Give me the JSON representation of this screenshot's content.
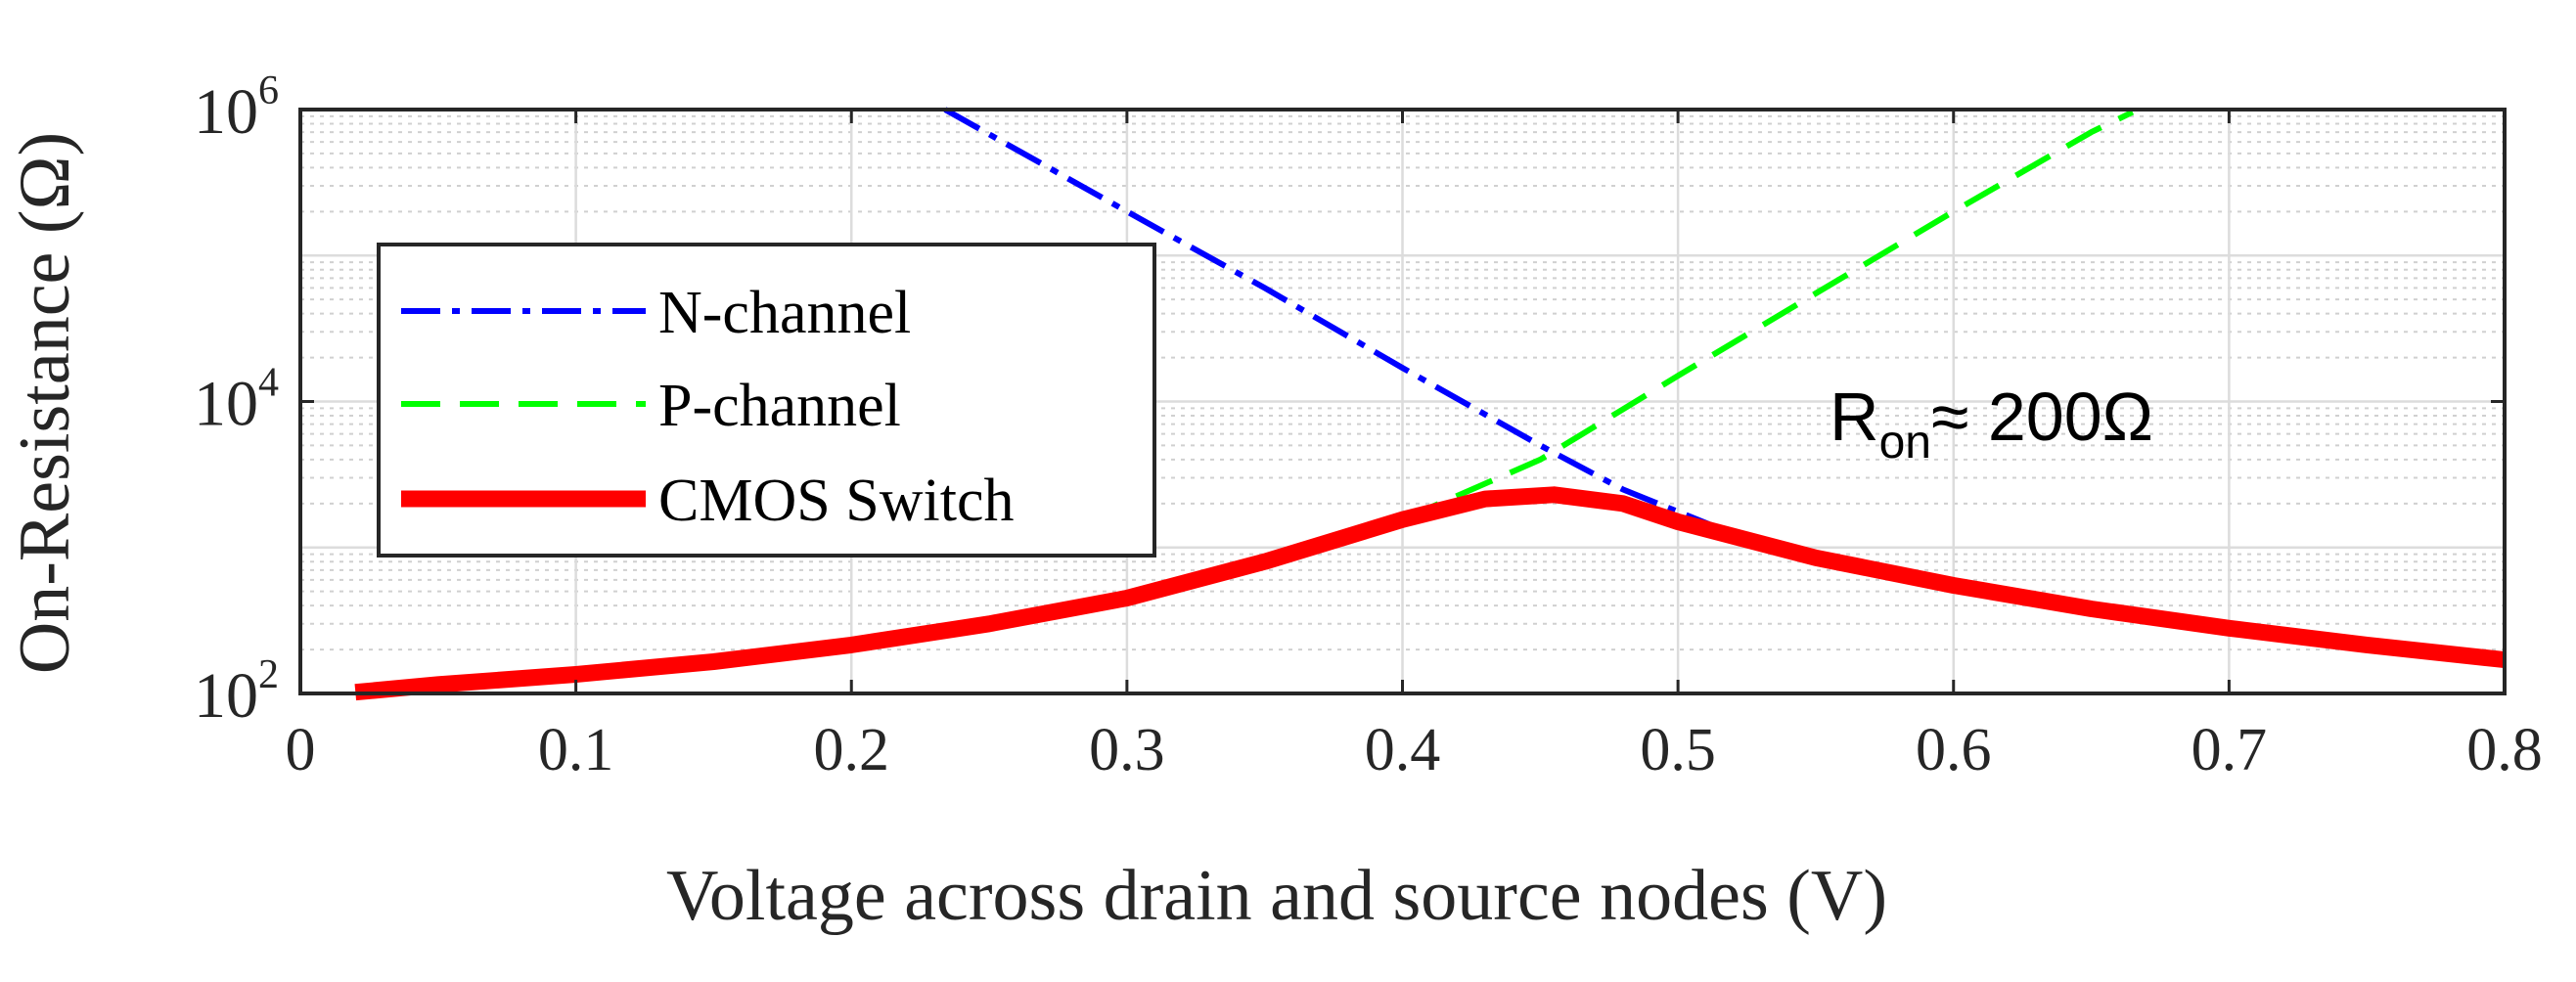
{
  "chart_data": {
    "type": "line",
    "title": "",
    "xlabel": "Voltage across drain and source nodes (V)",
    "ylabel": "On-Resistance (Ω)",
    "x_scale": "linear",
    "y_scale": "log",
    "xlim": [
      0,
      0.8
    ],
    "ylim": [
      100,
      1000000
    ],
    "x_ticks": [
      "0",
      "0.1",
      "0.2",
      "0.3",
      "0.4",
      "0.5",
      "0.6",
      "0.7",
      "0.8"
    ],
    "x_tick_values": [
      0,
      0.1,
      0.2,
      0.3,
      0.4,
      0.5,
      0.6,
      0.7,
      0.8
    ],
    "y_ticks": [
      {
        "base": "10",
        "exp": "2",
        "value": 100
      },
      {
        "base": "10",
        "exp": "4",
        "value": 10000
      },
      {
        "base": "10",
        "exp": "6",
        "value": 1000000
      }
    ],
    "grid": true,
    "minor_grid": true,
    "legend_position": "upper-left",
    "series": [
      {
        "name": "N-channel",
        "color": "#0000ff",
        "style": "dash-dot",
        "x": [
          0.234,
          0.3,
          0.35,
          0.4,
          0.45,
          0.48,
          0.515
        ],
        "y": [
          1000000,
          200000,
          60000,
          17000,
          5000,
          2500,
          1350
        ]
      },
      {
        "name": "P-channel",
        "color": "#00ff00",
        "style": "dashed",
        "x": [
          0.4,
          0.45,
          0.5,
          0.55,
          0.6,
          0.65,
          0.665
        ],
        "y": [
          1550,
          4000,
          15000,
          55000,
          200000,
          700000,
          960000
        ]
      },
      {
        "name": "CMOS Switch",
        "color": "#ff0000",
        "style": "solid-thick",
        "x": [
          0.02,
          0.05,
          0.1,
          0.15,
          0.2,
          0.25,
          0.3,
          0.35,
          0.4,
          0.43,
          0.455,
          0.48,
          0.5,
          0.55,
          0.6,
          0.65,
          0.7,
          0.75,
          0.8
        ],
        "y": [
          102,
          115,
          135,
          165,
          215,
          300,
          450,
          800,
          1550,
          2150,
          2300,
          2000,
          1500,
          850,
          550,
          380,
          280,
          215,
          170
        ]
      }
    ],
    "annotations": [
      {
        "text": "R",
        "subscript": "on",
        "suffix": "≈ 200Ω",
        "x": 0.555,
        "y": 8000
      }
    ]
  }
}
